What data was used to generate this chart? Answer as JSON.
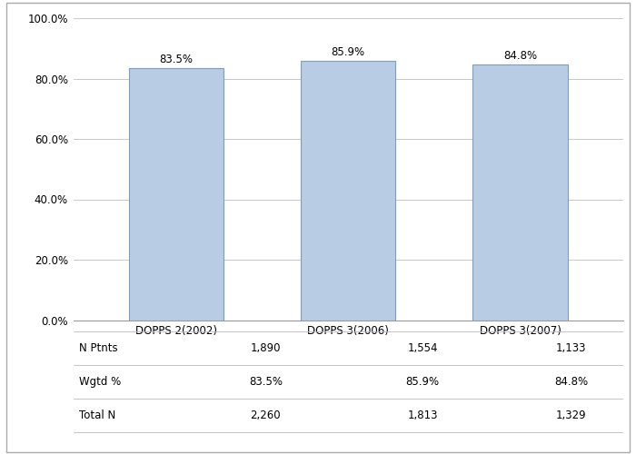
{
  "categories": [
    "DOPPS 2(2002)",
    "DOPPS 3(2006)",
    "DOPPS 3(2007)"
  ],
  "values": [
    83.5,
    85.9,
    84.8
  ],
  "bar_color": "#b8cce4",
  "bar_edge_color": "#7a9dc0",
  "ylim": [
    0,
    100
  ],
  "yticks": [
    0,
    20,
    40,
    60,
    80,
    100
  ],
  "ytick_labels": [
    "0.0%",
    "20.0%",
    "40.0%",
    "60.0%",
    "80.0%",
    "100.0%"
  ],
  "bar_labels": [
    "83.5%",
    "85.9%",
    "84.8%"
  ],
  "table_row_labels": [
    "N Ptnts",
    "Wgtd %",
    "Total N"
  ],
  "table_data": [
    [
      "1,890",
      "1,554",
      "1,133"
    ],
    [
      "83.5%",
      "85.9%",
      "84.8%"
    ],
    [
      "2,260",
      "1,813",
      "1,329"
    ]
  ],
  "background_color": "#ffffff",
  "grid_color": "#c8c8c8",
  "label_fontsize": 8.5,
  "tick_fontsize": 8.5,
  "bar_label_fontsize": 8.5,
  "table_fontsize": 8.5,
  "bar_width": 0.55
}
